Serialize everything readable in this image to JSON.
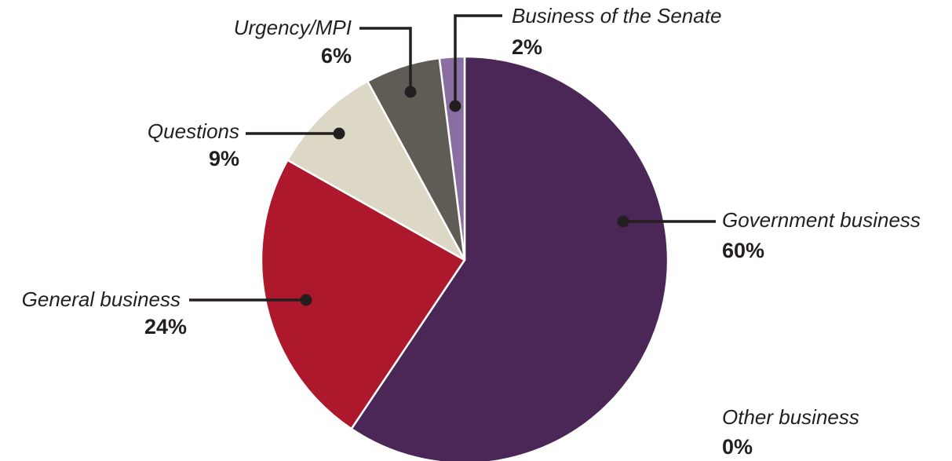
{
  "chart_data": {
    "type": "pie",
    "start": "top",
    "direction": "clockwise",
    "slices": [
      {
        "name": "Government business",
        "value": 60,
        "label": "60%",
        "color": "#4b2757"
      },
      {
        "name": "Other business",
        "value": 0,
        "label": "0%",
        "color": "#4b2757"
      },
      {
        "name": "General business",
        "value": 24,
        "label": "24%",
        "color": "#ae182c"
      },
      {
        "name": "Questions",
        "value": 9,
        "label": "9%",
        "color": "#dcd8c5"
      },
      {
        "name": "Urgency/MPI",
        "value": 6,
        "label": "6%",
        "color": "#5f5b55"
      },
      {
        "name": "Business of the Senate",
        "value": 2,
        "label": "2%",
        "color": "#8a6ea1"
      }
    ],
    "slice_border_color": "#ffffff",
    "leader_color": "#231f20",
    "text_color": "#231f20"
  }
}
